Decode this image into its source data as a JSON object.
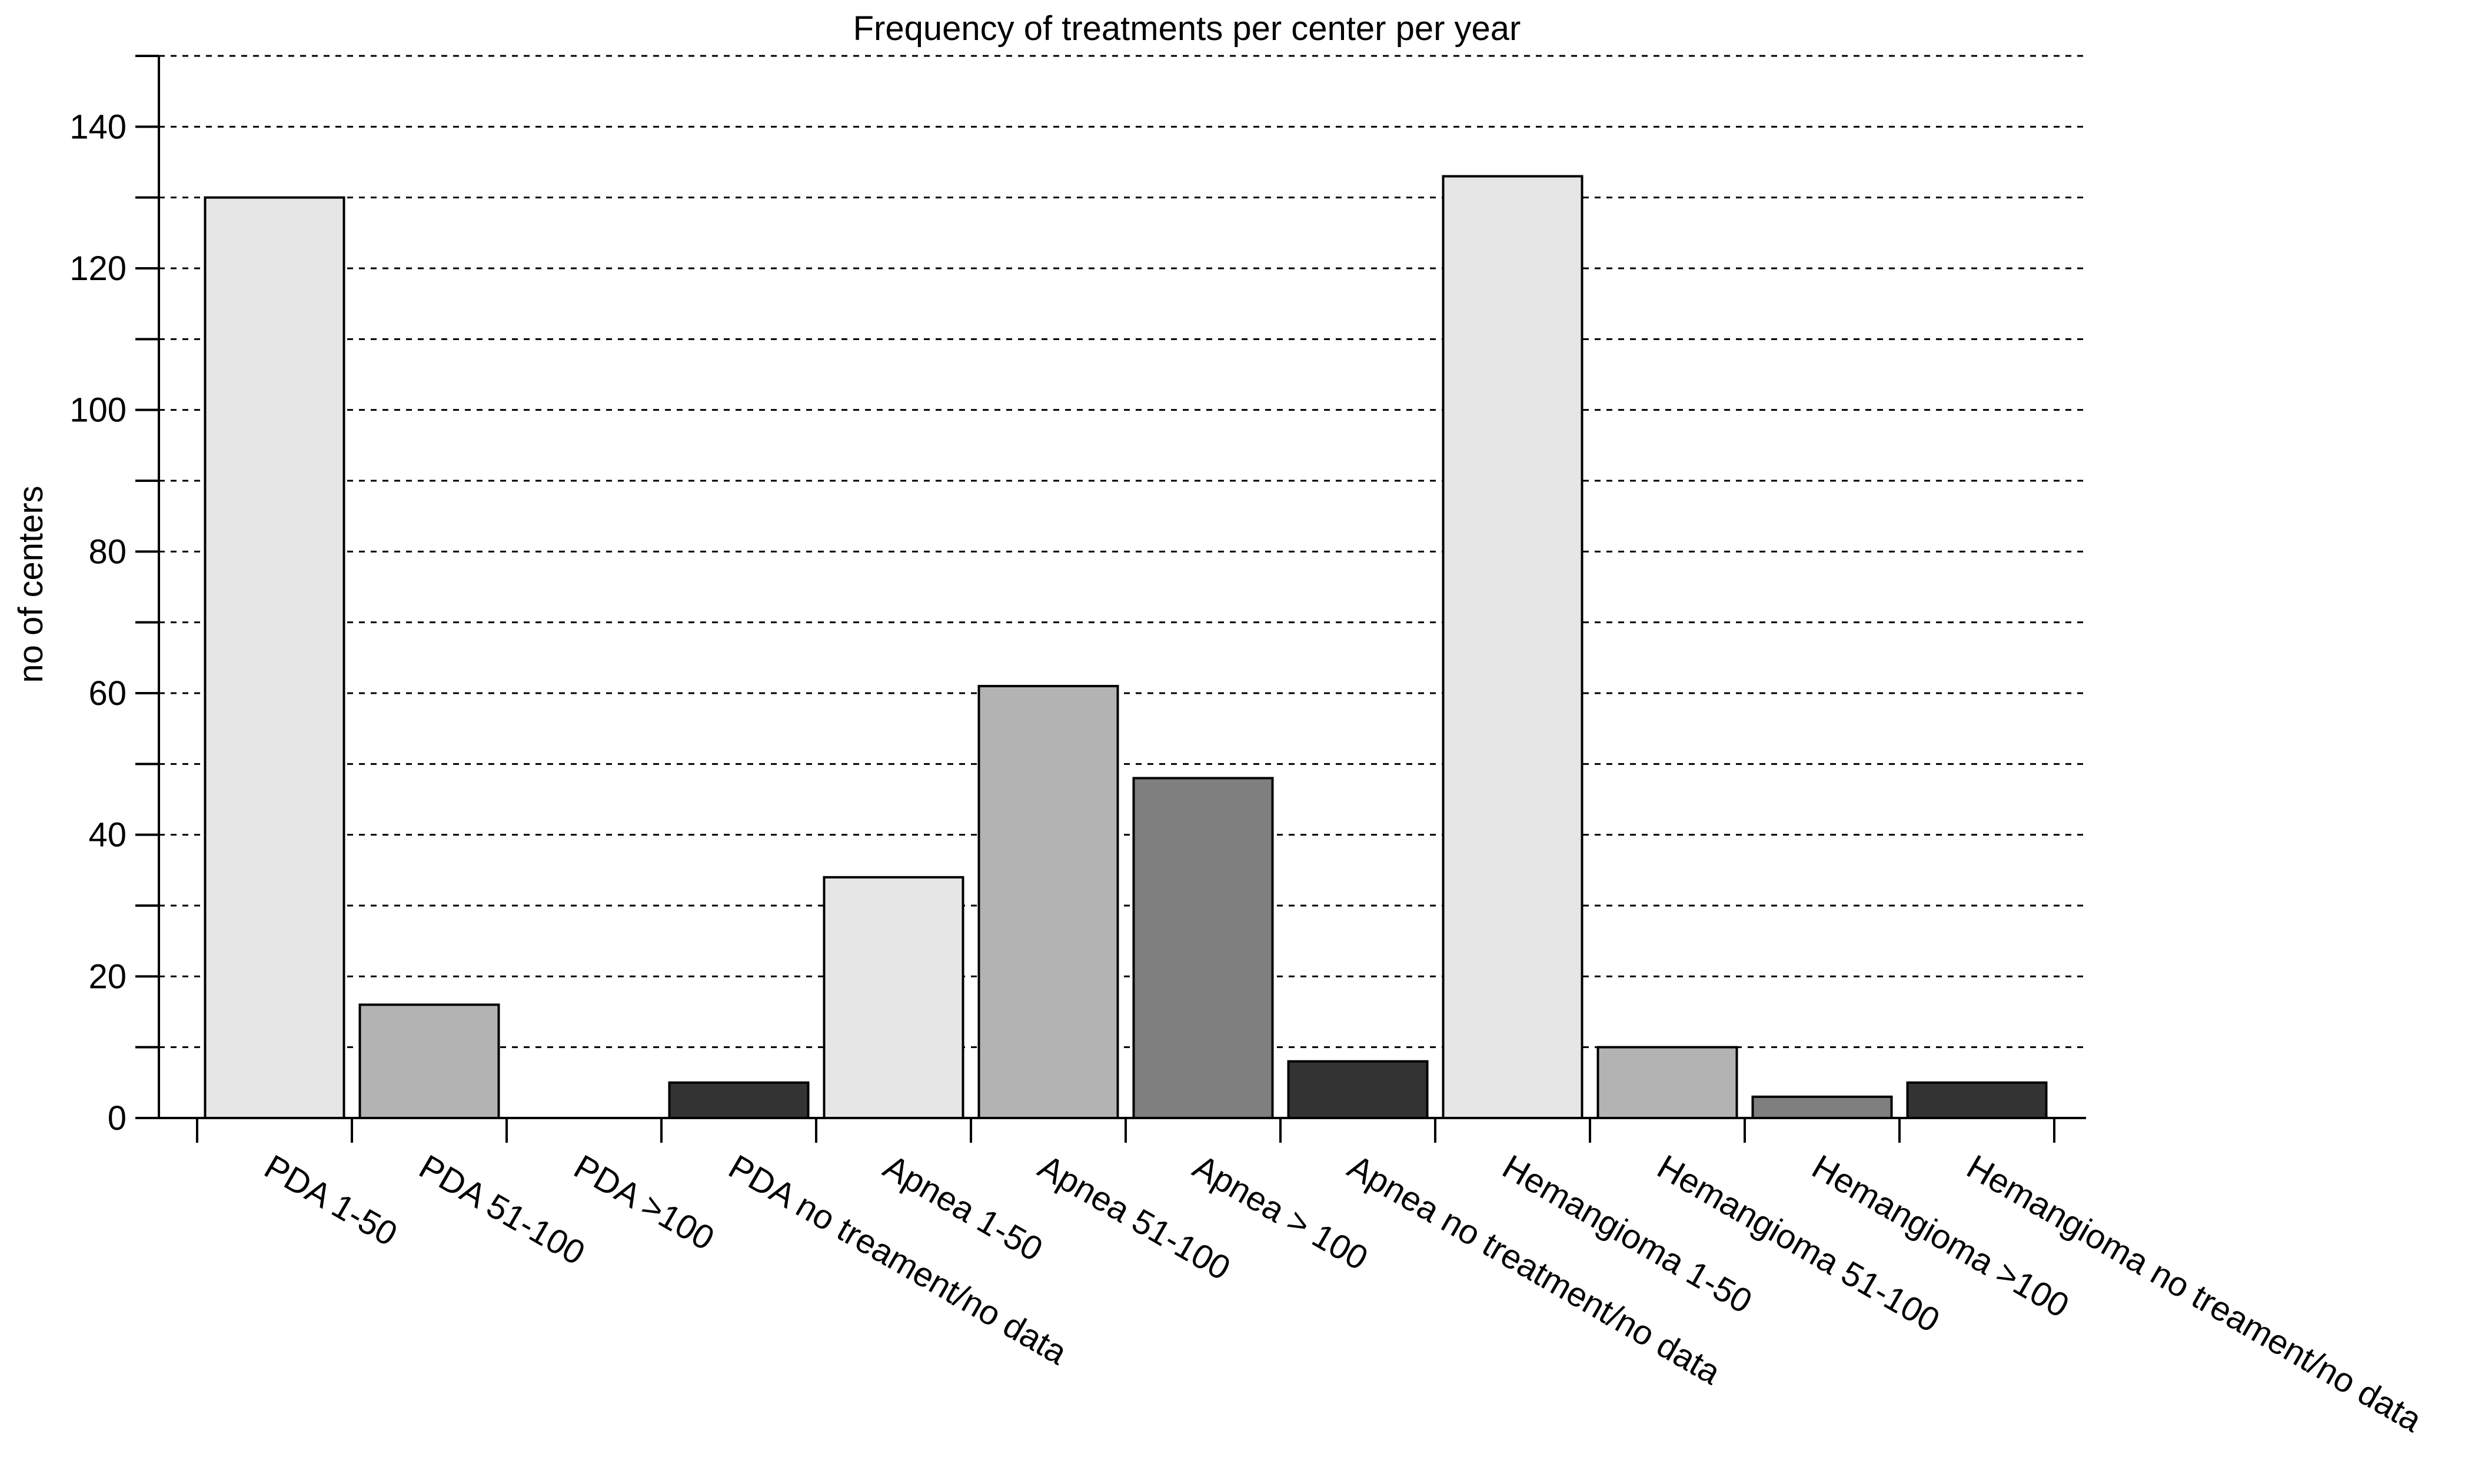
{
  "chart_data": {
    "type": "bar",
    "title": "Frequency of treatments per center per year",
    "xlabel": "",
    "ylabel": "no of centers",
    "ylim": [
      0,
      150
    ],
    "yticks": [
      0,
      20,
      40,
      60,
      80,
      100,
      120,
      140
    ],
    "grid": "dashed horizontal every 10",
    "categories": [
      "PDA 1-50",
      "PDA 51-100",
      "PDA >100",
      "PDA no treament/no data",
      "Apnea 1-50",
      "Apnea 51-100",
      "Apnea > 100",
      "Apnea no treatment/no data",
      "Hemangioma 1-50",
      "Hemangioma 51-100",
      "Hemangioma >100",
      "Hemangioma no treament/no data"
    ],
    "values": [
      130,
      16,
      0,
      5,
      34,
      61,
      48,
      8,
      133,
      10,
      3,
      5
    ],
    "colors": [
      "#e6e6e6",
      "#b3b3b3",
      "#7f7f7f",
      "#333333",
      "#e6e6e6",
      "#b3b3b3",
      "#7f7f7f",
      "#333333",
      "#e6e6e6",
      "#b3b3b3",
      "#7f7f7f",
      "#333333"
    ]
  }
}
